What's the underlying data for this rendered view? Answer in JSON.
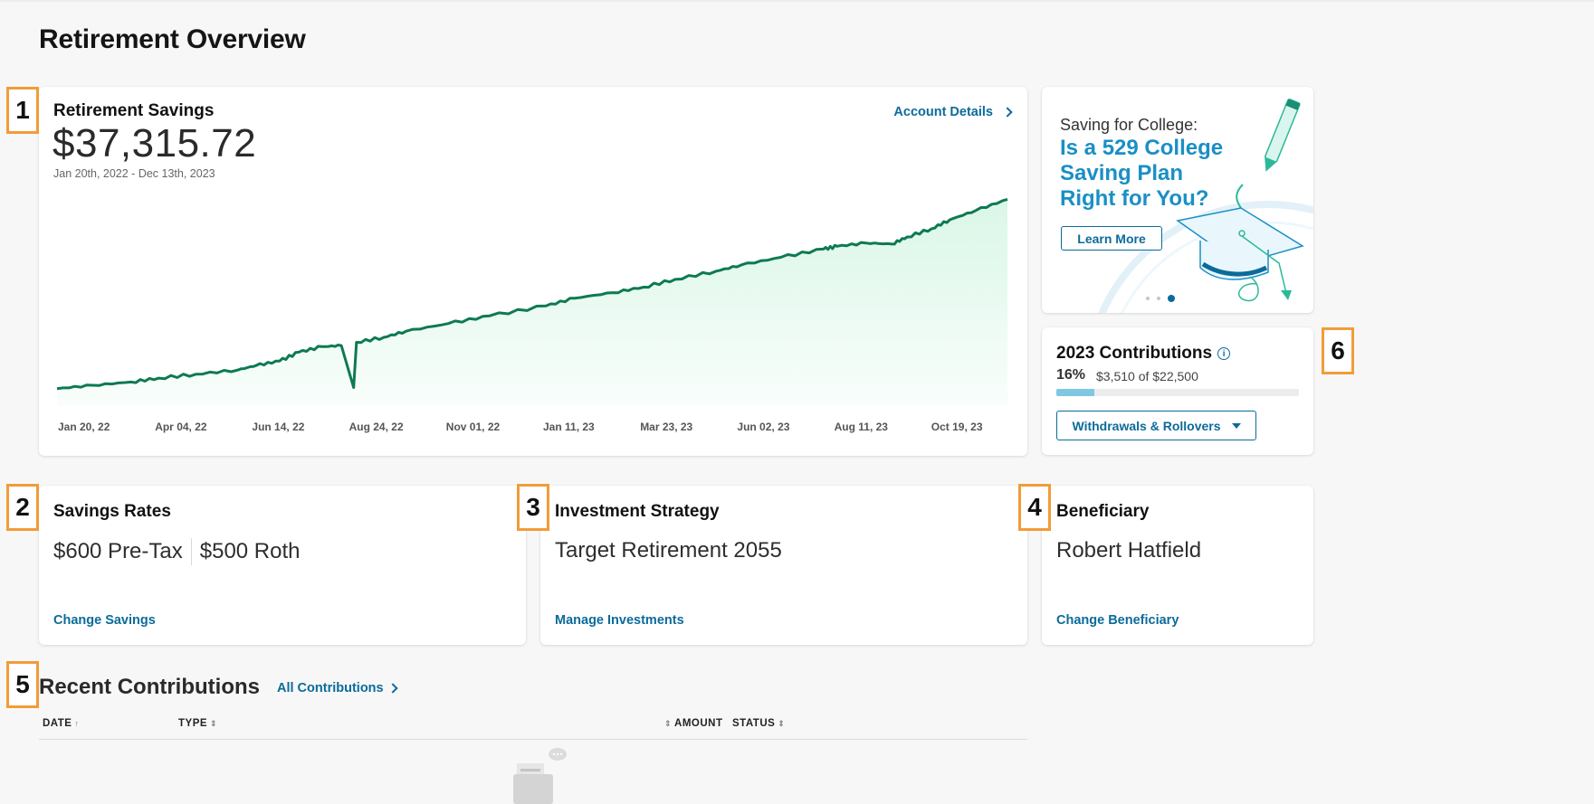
{
  "page": {
    "title": "Retirement Overview"
  },
  "badges": [
    "1",
    "2",
    "3",
    "4",
    "5",
    "6"
  ],
  "retirement_savings": {
    "title": "Retirement Savings",
    "balance": "$37,315.72",
    "date_range": "Jan 20th, 2022 - Dec 13th, 2023",
    "account_link": "Account Details",
    "line_color": "#0e7a52",
    "fill_color": "#d8f6e6"
  },
  "chart_data": {
    "type": "area",
    "title": "",
    "xlabel": "",
    "ylabel": "",
    "x_tick_labels": [
      "Jan 20, 22",
      "Apr 04, 22",
      "Jun 14, 22",
      "Aug 24, 22",
      "Nov 01, 22",
      "Jan 11, 23",
      "Mar 23, 23",
      "Jun 02, 23",
      "Aug 11, 23",
      "Oct 19, 23"
    ],
    "grid": false,
    "series": [
      {
        "values_description_free": true,
        "x": [
          "2022-01-20",
          "2022-02-15",
          "2022-03-15",
          "2022-04-04",
          "2022-05-01",
          "2022-06-01",
          "2022-06-14",
          "2022-07-01",
          "2022-07-15",
          "2022-08-01",
          "2022-08-15",
          "2022-08-24",
          "2022-08-26",
          "2022-09-15",
          "2022-10-01",
          "2022-11-01",
          "2022-12-01",
          "2023-01-11",
          "2023-02-01",
          "2023-03-01",
          "2023-03-23",
          "2023-04-15",
          "2023-05-15",
          "2023-06-02",
          "2023-07-01",
          "2023-08-01",
          "2023-08-11",
          "2023-09-01",
          "2023-09-20",
          "2023-10-01",
          "2023-10-19",
          "2023-11-01",
          "2023-11-20",
          "2023-12-13"
        ],
        "y": [
          3000,
          3600,
          4200,
          4900,
          5600,
          6400,
          7200,
          8000,
          9600,
          10600,
          10800,
          3200,
          11400,
          12300,
          13400,
          14800,
          16200,
          18000,
          19400,
          20400,
          21400,
          22800,
          24300,
          25400,
          26800,
          28300,
          28800,
          29400,
          29200,
          30500,
          32000,
          33600,
          35300,
          37316
        ]
      }
    ]
  },
  "promo": {
    "kicker": "Saving for College:",
    "headline": "Is a 529 College Saving Plan Right for You?",
    "button": "Learn More",
    "slides": 3,
    "active_slide": 3
  },
  "contributions": {
    "title": "2023 Contributions",
    "percent_label": "16%",
    "amount_label": "$3,510 of $22,500",
    "progress_fraction": 0.156,
    "button": "Withdrawals & Rollovers"
  },
  "savings_rates": {
    "title": "Savings Rates",
    "pre_tax": "$600 Pre-Tax",
    "roth": "$500 Roth",
    "link": "Change Savings"
  },
  "investment_strategy": {
    "title": "Investment Strategy",
    "value": "Target Retirement 2055",
    "link": "Manage Investments"
  },
  "beneficiary": {
    "title": "Beneficiary",
    "value": "Robert Hatfield",
    "link": "Change Beneficiary"
  },
  "recent": {
    "title": "Recent Contributions",
    "link": "All Contributions",
    "columns": {
      "date": "DATE",
      "type": "TYPE",
      "amount": "AMOUNT",
      "status": "STATUS"
    }
  },
  "colors": {
    "accent": "#0b6b9a",
    "badge_border": "#f29c38",
    "promo_headline": "#1a8fc6"
  }
}
